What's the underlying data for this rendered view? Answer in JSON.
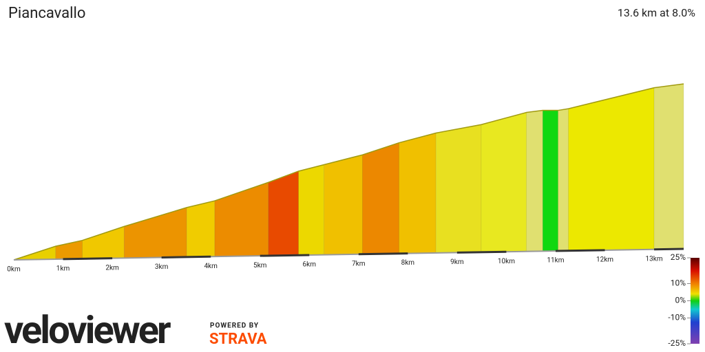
{
  "chart_data": {
    "type": "profile",
    "title": "Piancavallo",
    "subtitle": "13.6 km at 8.0%",
    "x": [
      0,
      0.85,
      1.39,
      2.24,
      3.51,
      4.08,
      5.17,
      5.78,
      6.3,
      7.08,
      7.82,
      8.57,
      9.49,
      10.41,
      10.74,
      11.05,
      11.26,
      13.0,
      13.6
    ],
    "values": [
      0,
      85,
      120,
      207,
      324,
      365,
      480,
      550,
      590,
      650,
      725,
      785,
      835,
      910,
      922,
      920,
      930,
      1058,
      1080
    ],
    "segment_colors": [
      "#e8d000",
      "#ec9a00",
      "#f0c800",
      "#ec9400",
      "#f0cc00",
      "#ec8c00",
      "#e84a00",
      "#ecd800",
      "#f0c000",
      "#ec8800",
      "#f0c000",
      "#e8e020",
      "#e8e820",
      "#e0e070",
      "#10d810",
      "#e0e070",
      "#ece800",
      "#e0e070"
    ],
    "xlim": [
      0,
      13.6
    ],
    "ylim": [
      0,
      1080
    ],
    "xticks": [
      {
        "value": 0,
        "label": "0km"
      },
      {
        "value": 1,
        "label": "1km"
      },
      {
        "value": 2,
        "label": "2km"
      },
      {
        "value": 3,
        "label": "3km"
      },
      {
        "value": 4,
        "label": "4km"
      },
      {
        "value": 5,
        "label": "5km"
      },
      {
        "value": 6,
        "label": "6km"
      },
      {
        "value": 7,
        "label": "7km"
      },
      {
        "value": 8,
        "label": "8km"
      },
      {
        "value": 9,
        "label": "9km"
      },
      {
        "value": 10,
        "label": "10km"
      },
      {
        "value": 11,
        "label": "11km"
      },
      {
        "value": 12,
        "label": "12km"
      },
      {
        "value": 13,
        "label": "13km"
      }
    ],
    "color_scale": {
      "lim": [
        -25,
        25
      ],
      "ticks": [
        {
          "value": 25,
          "label": "25%"
        },
        {
          "value": 10,
          "label": "10%"
        },
        {
          "value": 0,
          "label": "0%"
        },
        {
          "value": -10,
          "label": "-10%"
        },
        {
          "value": -25,
          "label": "-25%"
        }
      ]
    },
    "brand": "veloviewer",
    "powered_by": "POWERED BY",
    "partner": "STRAVA"
  }
}
